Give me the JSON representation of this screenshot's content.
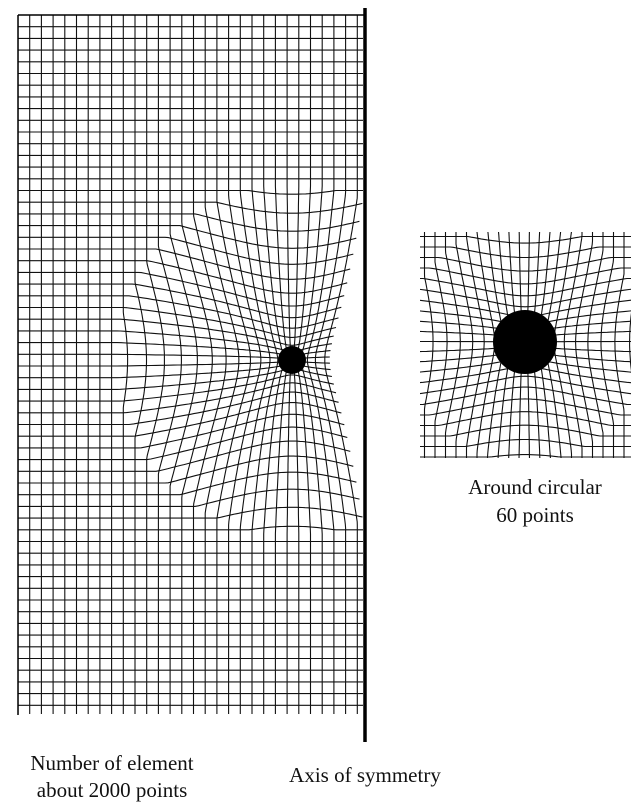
{
  "main_mesh": {
    "caption_lines": [
      "Number of element",
      "about 2000 points"
    ],
    "axis_label": "Axis of symmetry"
  },
  "inset_mesh": {
    "caption_lines": [
      "Around circular",
      "60 points"
    ]
  }
}
